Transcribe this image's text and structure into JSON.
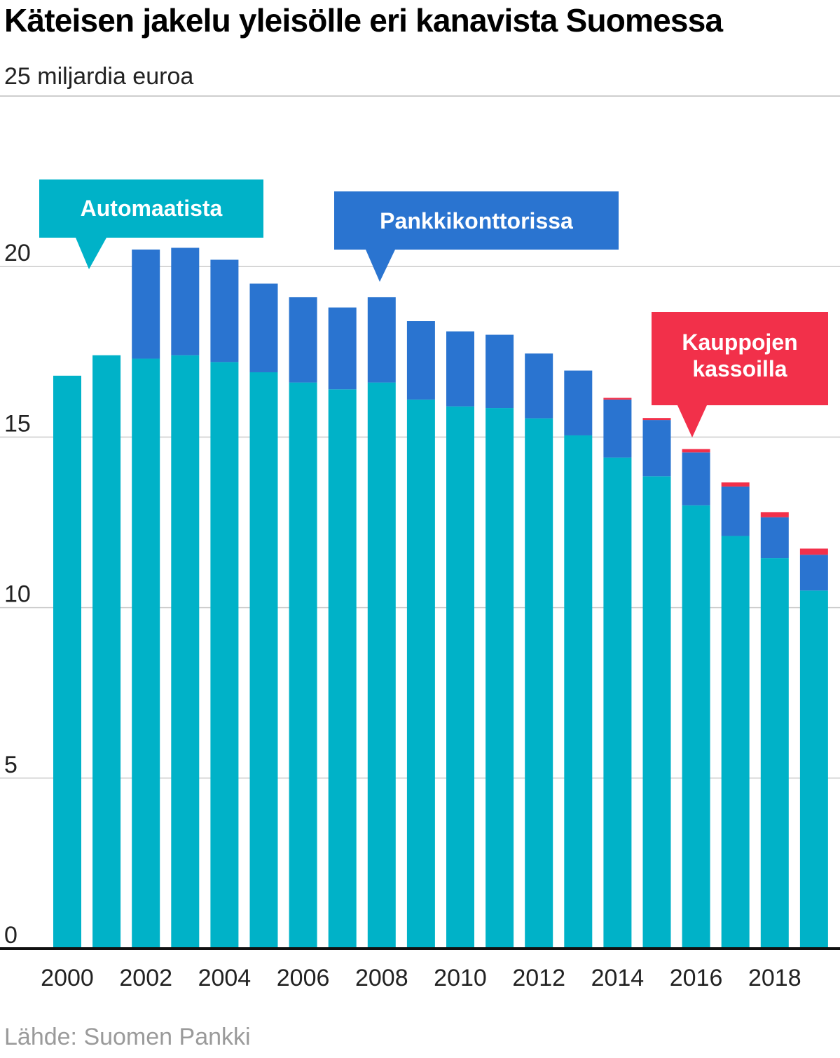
{
  "title": "Käteisen jakelu yleisölle eri kanavista Suomessa",
  "subtitle": "25 miljardia euroa",
  "source": "Lähde: Suomen Pankki",
  "colors": {
    "automaatit": "#00b2c8",
    "pankkikonttorit": "#2a74d0",
    "kaupat": "#f2304a",
    "grid": "#cccccc",
    "axis": "#111111"
  },
  "chart_data": {
    "type": "bar",
    "stacked": true,
    "x": [
      2000,
      2001,
      2002,
      2003,
      2004,
      2005,
      2006,
      2007,
      2008,
      2009,
      2010,
      2011,
      2012,
      2013,
      2014,
      2015,
      2016,
      2017,
      2018,
      2019
    ],
    "x_tick_labels": [
      "2000",
      "2002",
      "2004",
      "2006",
      "2008",
      "2010",
      "2012",
      "2014",
      "2016",
      "2018"
    ],
    "y_tick_labels": [
      "0",
      "5",
      "10",
      "15",
      "20"
    ],
    "ylim": [
      0,
      25
    ],
    "grid": true,
    "series": [
      {
        "name": "Automaatista",
        "color": "#00b2c8",
        "values": [
          16.8,
          17.4,
          17.3,
          17.4,
          17.2,
          16.9,
          16.6,
          16.4,
          16.6,
          16.1,
          15.9,
          15.85,
          15.55,
          15.05,
          14.4,
          13.85,
          13.0,
          12.1,
          11.45,
          10.5
        ]
      },
      {
        "name": "Pankkikonttorissa",
        "color": "#2a74d0",
        "values": [
          0,
          0,
          3.2,
          3.15,
          3.0,
          2.6,
          2.5,
          2.4,
          2.5,
          2.3,
          2.2,
          2.15,
          1.9,
          1.9,
          1.7,
          1.65,
          1.55,
          1.45,
          1.2,
          1.05
        ]
      },
      {
        "name": "Kauppojen kassoilla",
        "color": "#f2304a",
        "values": [
          0,
          0,
          0,
          0,
          0,
          0,
          0,
          0,
          0,
          0,
          0,
          0,
          0,
          0,
          0.05,
          0.06,
          0.1,
          0.12,
          0.15,
          0.18
        ]
      }
    ],
    "callouts": [
      {
        "text": "Automaatista",
        "series": "Automaatista"
      },
      {
        "text": "Pankkikonttorissa",
        "series": "Pankkikonttorissa"
      },
      {
        "text": "Kauppojen kassoilla",
        "lines": [
          "Kauppojen",
          "kassoilla"
        ],
        "series": "Kauppojen kassoilla"
      }
    ]
  }
}
